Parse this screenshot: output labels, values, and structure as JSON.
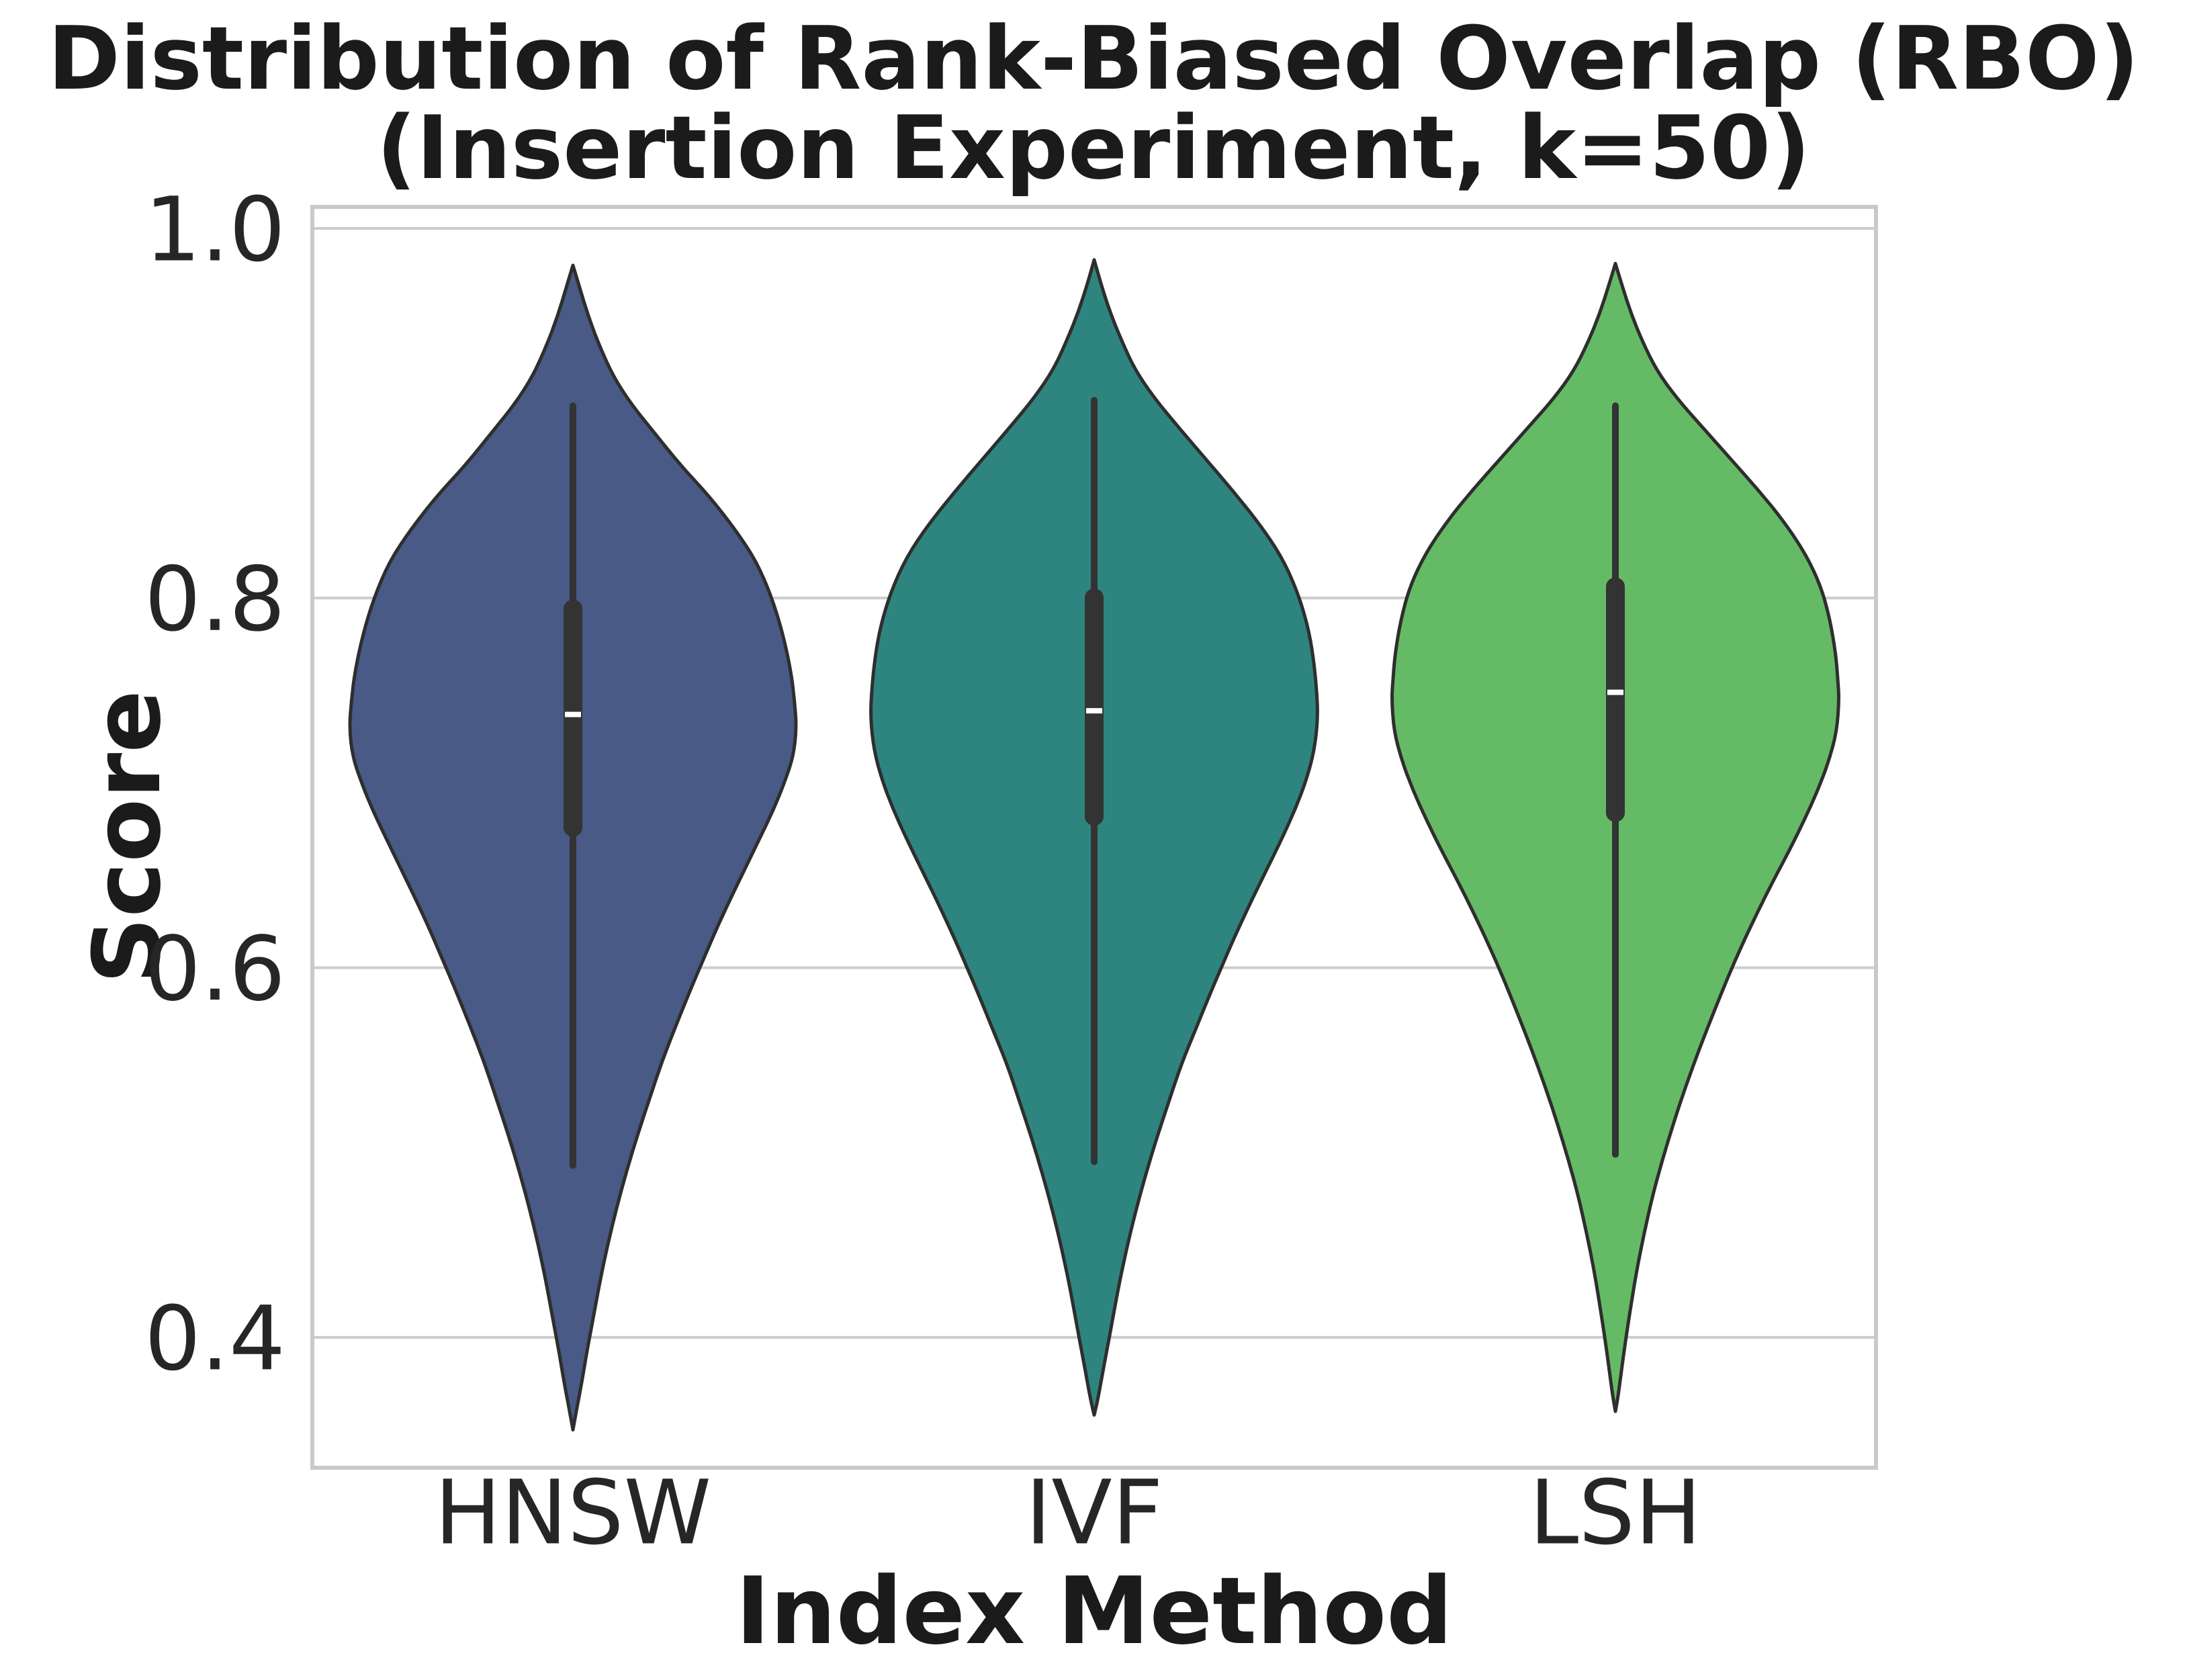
{
  "figure": {
    "title_line1": "Distribution of Rank-Biased Overlap (RBO)",
    "title_line2": "(Insertion Experiment, k=50)",
    "xlabel": "Index Method",
    "ylabel": "Score"
  },
  "chart_data": {
    "type": "violin",
    "title": "Distribution of Rank-Biased Overlap (RBO) (Insertion Experiment, k=50)",
    "xlabel": "Index Method",
    "ylabel": "Score",
    "categories": [
      "HNSW",
      "IVF",
      "LSH"
    ],
    "y_ticks": [
      {
        "label": "1.0",
        "value": 1.0
      },
      {
        "label": "0.8",
        "value": 0.8
      },
      {
        "label": "0.6",
        "value": 0.6
      },
      {
        "label": "0.4",
        "value": 0.4
      }
    ],
    "ylim": [
      0.33,
      1.01
    ],
    "grid": true,
    "legend": "none",
    "style": {
      "background": "#ffffff",
      "grid_color": "#cccccc",
      "spine_color": "#c9c9c9",
      "violin_edge_color": "#2e2e2e",
      "box_color": "#333333",
      "median_color": "#ffffff",
      "text_color": "#262626"
    },
    "series": [
      {
        "name": "HNSW",
        "color": "#485a85",
        "stats": {
          "median": 0.737,
          "q1": 0.671,
          "q3": 0.799,
          "whisker_low": 0.493,
          "whisker_high": 0.904,
          "kde_min": 0.35,
          "kde_max": 0.98
        },
        "kde_profile": [
          [
            0.98,
            0.0
          ],
          [
            0.968,
            0.03
          ],
          [
            0.952,
            0.07
          ],
          [
            0.936,
            0.12
          ],
          [
            0.92,
            0.18
          ],
          [
            0.905,
            0.26
          ],
          [
            0.89,
            0.36
          ],
          [
            0.872,
            0.48
          ],
          [
            0.855,
            0.61
          ],
          [
            0.838,
            0.72
          ],
          [
            0.82,
            0.82
          ],
          [
            0.8,
            0.89
          ],
          [
            0.78,
            0.94
          ],
          [
            0.76,
            0.975
          ],
          [
            0.745,
            0.99
          ],
          [
            0.73,
            1.0
          ],
          [
            0.714,
            0.985
          ],
          [
            0.7,
            0.945
          ],
          [
            0.685,
            0.895
          ],
          [
            0.67,
            0.835
          ],
          [
            0.655,
            0.775
          ],
          [
            0.64,
            0.715
          ],
          [
            0.622,
            0.645
          ],
          [
            0.605,
            0.585
          ],
          [
            0.588,
            0.525
          ],
          [
            0.57,
            0.465
          ],
          [
            0.55,
            0.4
          ],
          [
            0.53,
            0.345
          ],
          [
            0.51,
            0.29
          ],
          [
            0.49,
            0.24
          ],
          [
            0.47,
            0.195
          ],
          [
            0.45,
            0.155
          ],
          [
            0.43,
            0.12
          ],
          [
            0.41,
            0.09
          ],
          [
            0.392,
            0.062
          ],
          [
            0.376,
            0.04
          ],
          [
            0.362,
            0.018
          ],
          [
            0.35,
            0.0
          ]
        ]
      },
      {
        "name": "IVF",
        "color": "#2e8580",
        "stats": {
          "median": 0.739,
          "q1": 0.677,
          "q3": 0.805,
          "whisker_low": 0.495,
          "whisker_high": 0.907,
          "kde_min": 0.358,
          "kde_max": 0.983
        },
        "kde_profile": [
          [
            0.983,
            0.0
          ],
          [
            0.97,
            0.03
          ],
          [
            0.955,
            0.07
          ],
          [
            0.94,
            0.12
          ],
          [
            0.924,
            0.18
          ],
          [
            0.908,
            0.27
          ],
          [
            0.892,
            0.38
          ],
          [
            0.875,
            0.5
          ],
          [
            0.858,
            0.62
          ],
          [
            0.84,
            0.74
          ],
          [
            0.822,
            0.84
          ],
          [
            0.803,
            0.91
          ],
          [
            0.785,
            0.955
          ],
          [
            0.768,
            0.98
          ],
          [
            0.75,
            0.995
          ],
          [
            0.735,
            1.0
          ],
          [
            0.718,
            0.985
          ],
          [
            0.702,
            0.95
          ],
          [
            0.686,
            0.9
          ],
          [
            0.67,
            0.84
          ],
          [
            0.654,
            0.775
          ],
          [
            0.638,
            0.71
          ],
          [
            0.62,
            0.64
          ],
          [
            0.602,
            0.575
          ],
          [
            0.585,
            0.515
          ],
          [
            0.567,
            0.455
          ],
          [
            0.548,
            0.39
          ],
          [
            0.528,
            0.335
          ],
          [
            0.508,
            0.28
          ],
          [
            0.488,
            0.23
          ],
          [
            0.468,
            0.185
          ],
          [
            0.448,
            0.145
          ],
          [
            0.428,
            0.11
          ],
          [
            0.408,
            0.08
          ],
          [
            0.392,
            0.055
          ],
          [
            0.377,
            0.032
          ],
          [
            0.365,
            0.014
          ],
          [
            0.358,
            0.0
          ]
        ]
      },
      {
        "name": "LSH",
        "color": "#65bb65",
        "stats": {
          "median": 0.749,
          "q1": 0.679,
          "q3": 0.811,
          "whisker_low": 0.499,
          "whisker_high": 0.904,
          "kde_min": 0.36,
          "kde_max": 0.981
        },
        "kde_profile": [
          [
            0.981,
            0.0
          ],
          [
            0.969,
            0.03
          ],
          [
            0.954,
            0.07
          ],
          [
            0.939,
            0.12
          ],
          [
            0.923,
            0.185
          ],
          [
            0.908,
            0.275
          ],
          [
            0.893,
            0.385
          ],
          [
            0.876,
            0.51
          ],
          [
            0.859,
            0.635
          ],
          [
            0.842,
            0.75
          ],
          [
            0.824,
            0.85
          ],
          [
            0.806,
            0.92
          ],
          [
            0.788,
            0.96
          ],
          [
            0.77,
            0.985
          ],
          [
            0.755,
            0.995
          ],
          [
            0.745,
            1.0
          ],
          [
            0.728,
            0.99
          ],
          [
            0.712,
            0.955
          ],
          [
            0.696,
            0.905
          ],
          [
            0.68,
            0.845
          ],
          [
            0.664,
            0.78
          ],
          [
            0.648,
            0.71
          ],
          [
            0.63,
            0.635
          ],
          [
            0.612,
            0.565
          ],
          [
            0.594,
            0.5
          ],
          [
            0.576,
            0.44
          ],
          [
            0.556,
            0.375
          ],
          [
            0.536,
            0.315
          ],
          [
            0.516,
            0.26
          ],
          [
            0.496,
            0.21
          ],
          [
            0.476,
            0.165
          ],
          [
            0.456,
            0.128
          ],
          [
            0.436,
            0.095
          ],
          [
            0.416,
            0.068
          ],
          [
            0.398,
            0.045
          ],
          [
            0.381,
            0.026
          ],
          [
            0.368,
            0.012
          ],
          [
            0.36,
            0.0
          ]
        ]
      }
    ]
  }
}
